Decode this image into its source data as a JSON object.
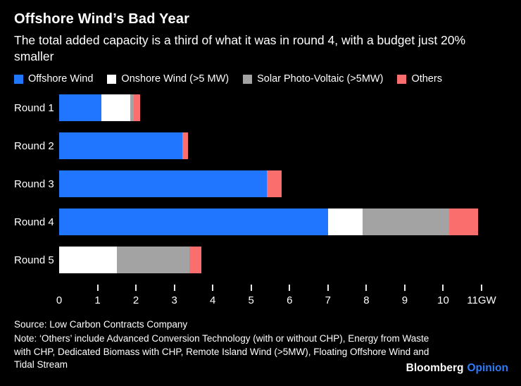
{
  "header": {
    "title": "Offshore Wind’s Bad Year",
    "subtitle": "The total added capacity is a third of what it was in round 4, with a budget just 20% smaller"
  },
  "legend": [
    {
      "label": "Offshore Wind",
      "color": "#2176ff"
    },
    {
      "label": "Onshore Wind (>5 MW)",
      "color": "#ffffff"
    },
    {
      "label": "Solar Photo-Voltaic (>5MW)",
      "color": "#a3a3a3"
    },
    {
      "label": "Others",
      "color": "#fa6e6e"
    }
  ],
  "chart_data": {
    "type": "bar",
    "orientation": "horizontal",
    "stacked": true,
    "title": "Offshore Wind’s Bad Year",
    "xlabel": "",
    "ylabel": "",
    "unit": "GW",
    "xlim": [
      0,
      11
    ],
    "grid": false,
    "legend_position": "top",
    "categories": [
      "Round 1",
      "Round 2",
      "Round 3",
      "Round 4",
      "Round 5"
    ],
    "x_ticks": [
      "0",
      "1",
      "2",
      "3",
      "4",
      "5",
      "6",
      "7",
      "8",
      "9",
      "10",
      "11GW"
    ],
    "series": [
      {
        "name": "Offshore Wind",
        "color": "#2176ff",
        "values": [
          1.1,
          3.2,
          5.4,
          7.0,
          0
        ]
      },
      {
        "name": "Onshore Wind (>5 MW)",
        "color": "#ffffff",
        "values": [
          0.75,
          0,
          0,
          0.9,
          1.5
        ]
      },
      {
        "name": "Solar Photo-Voltaic (>5MW)",
        "color": "#a3a3a3",
        "values": [
          0.1,
          0,
          0,
          2.25,
          1.9
        ]
      },
      {
        "name": "Others",
        "color": "#fa6e6e",
        "values": [
          0.15,
          0.15,
          0.4,
          0.75,
          0.3
        ]
      }
    ]
  },
  "footer": {
    "source": "Source: Low Carbon Contracts Company",
    "note": "Note: ‘Others’ include Advanced Conversion Technology (with or without CHP), Energy from Waste with CHP, Dedicated Biomass with CHP, Remote Island Wind (>5MW), Floating Offshore Wind and Tidal Stream"
  },
  "brand": {
    "bloomberg": "Bloomberg",
    "opinion": "Opinion",
    "opinion_color": "#2f7bf7"
  }
}
